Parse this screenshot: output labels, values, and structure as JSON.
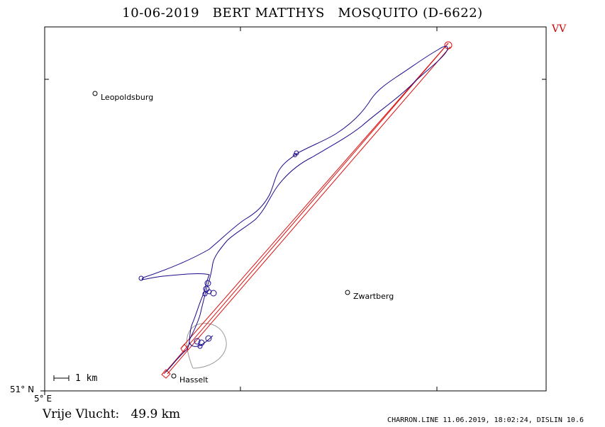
{
  "title": "10-06-2019   BERT MATTHYS   MOSQUITO (D-6622)",
  "corner_tag": "VV",
  "axis": {
    "latitude_label": "51° N",
    "longitude_label": "5° E"
  },
  "scale_bar": {
    "label": "1 km"
  },
  "places": [
    {
      "name": "Leopoldsburg"
    },
    {
      "name": "Zwartberg"
    },
    {
      "name": "Hasselt"
    }
  ],
  "distance": "Vrije Vlucht:   49.9 km",
  "footer": "CHARRON.LINE 11.06.2019, 18:02:24, DISLIN 10.6",
  "colors": {
    "track": "#1a0a8c",
    "task": "#dd1111",
    "thermal_area": "#999999",
    "frame": "#000000"
  }
}
